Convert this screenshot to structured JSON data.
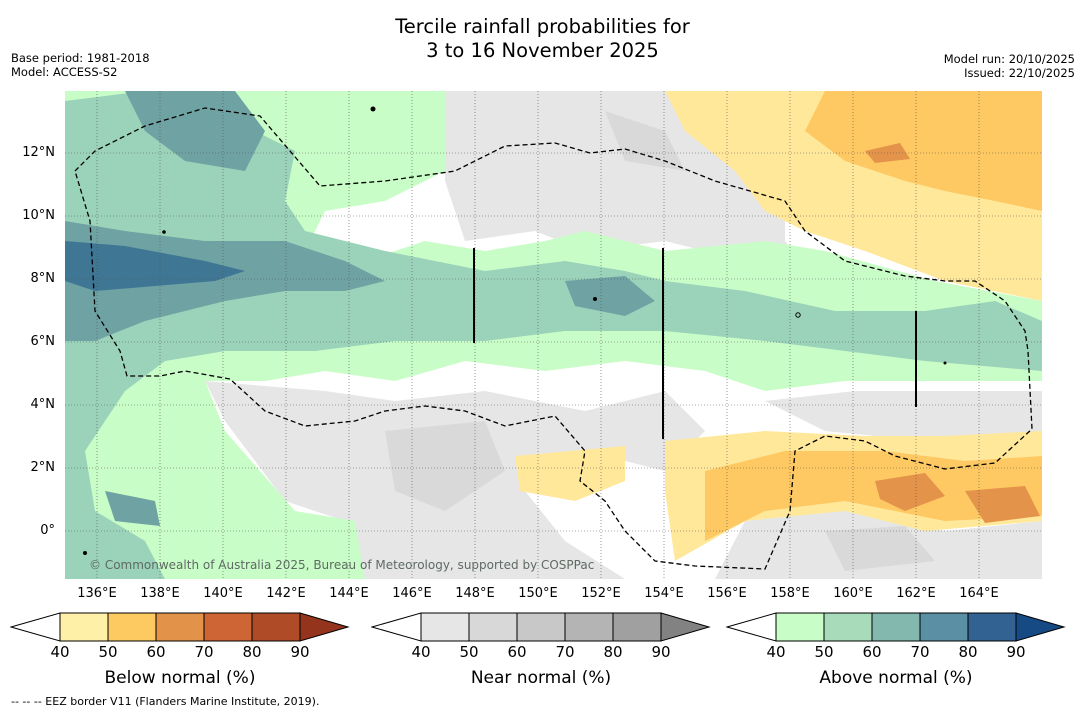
{
  "title": {
    "line1": "Tercile rainfall probabilities for",
    "line2": "3 to 16 November 2025"
  },
  "meta_left": {
    "base_period": "Base period: 1981-2018",
    "model": "Model: ACCESS-S2"
  },
  "meta_right": {
    "model_run": "Model run: 20/10/2025",
    "issued": "Issued: 22/10/2025"
  },
  "map": {
    "lat_labels": [
      "12°N",
      "10°N",
      "8°N",
      "6°N",
      "4°N",
      "2°N",
      "0°"
    ],
    "lon_labels": [
      "136°E",
      "138°E",
      "140°E",
      "142°E",
      "144°E",
      "146°E",
      "148°E",
      "150°E",
      "152°E",
      "154°E",
      "156°E",
      "158°E",
      "160°E",
      "162°E",
      "164°E"
    ],
    "copyright": "© Commonwealth of Australia 2025, Bureau of Meteorology, supported by COSPPac"
  },
  "colorbars": [
    {
      "name": "below",
      "title": "Below normal (%)",
      "ticks": [
        "40",
        "50",
        "60",
        "70",
        "80",
        "90"
      ],
      "colors": [
        "#fff0a8",
        "#fdc961",
        "#e3924a",
        "#cd6535",
        "#b04b27",
        "#94341d"
      ]
    },
    {
      "name": "near",
      "title": "Near normal (%)",
      "ticks": [
        "40",
        "50",
        "60",
        "70",
        "80",
        "90"
      ],
      "colors": [
        "#e6e6e6",
        "#d8d8d8",
        "#c8c8c8",
        "#b4b4b4",
        "#a0a0a0",
        "#828282"
      ]
    },
    {
      "name": "above",
      "title": "Above normal (%)",
      "ticks": [
        "40",
        "50",
        "60",
        "70",
        "80",
        "90"
      ],
      "colors": [
        "#c9fdc7",
        "#a8dbb9",
        "#83b8ae",
        "#5b90a4",
        "#326292",
        "#164a84"
      ]
    }
  ],
  "footnote": "-- -- -- EEZ border V11 (Flanders Marine Institute, 2019).",
  "colors": {
    "above40": "#c9fdc7",
    "above50": "#9bd2ba",
    "above60": "#6fa2a3",
    "above70": "#3e7694",
    "near40": "#e6e6e6",
    "near50": "#d9d9d9",
    "below40": "#ffe89a",
    "below50": "#fec862",
    "below60": "#e4934a"
  }
}
